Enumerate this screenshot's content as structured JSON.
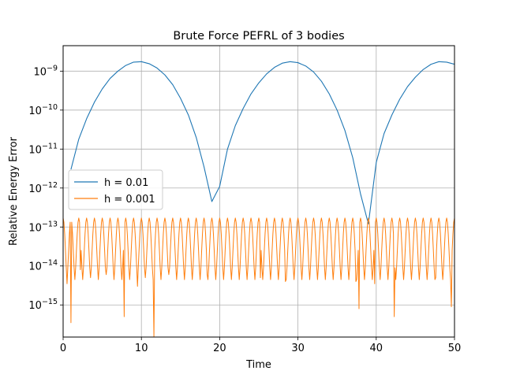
{
  "chart_data": {
    "type": "line",
    "title": "Brute Force PEFRL of 3 bodies",
    "xlabel": "Time",
    "ylabel": "Relative Energy Error",
    "xlim": [
      0,
      50
    ],
    "ylim": [
      1.5e-16,
      4.5e-09
    ],
    "yscale": "log",
    "grid": true,
    "legend_position": "center-left",
    "x_ticks": [
      0,
      10,
      20,
      30,
      40,
      50
    ],
    "x_tick_labels": [
      "0",
      "10",
      "20",
      "30",
      "40",
      "50"
    ],
    "y_ticks": [
      1e-15,
      1e-14,
      1e-13,
      1e-12,
      1e-11,
      1e-10,
      1e-09
    ],
    "y_tick_labels": [
      {
        "base": "10",
        "exp": "−15"
      },
      {
        "base": "10",
        "exp": "−14"
      },
      {
        "base": "10",
        "exp": "−13"
      },
      {
        "base": "10",
        "exp": "−12"
      },
      {
        "base": "10",
        "exp": "−11"
      },
      {
        "base": "10",
        "exp": "−10"
      },
      {
        "base": "10",
        "exp": "−9"
      }
    ],
    "series": [
      {
        "name": "h = 0.01",
        "color": "#1f77b4",
        "points": [
          [
            1,
            3e-12
          ],
          [
            2,
            1.8e-11
          ],
          [
            3,
            6e-11
          ],
          [
            4,
            1.6e-10
          ],
          [
            5,
            3.5e-10
          ],
          [
            6,
            6.5e-10
          ],
          [
            7,
            1e-09
          ],
          [
            8,
            1.4e-09
          ],
          [
            9,
            1.7e-09
          ],
          [
            10,
            1.75e-09
          ],
          [
            11,
            1.55e-09
          ],
          [
            12,
            1.2e-09
          ],
          [
            13,
            8e-10
          ],
          [
            14,
            4.5e-10
          ],
          [
            15,
            2e-10
          ],
          [
            16,
            7.5e-11
          ],
          [
            17,
            2e-11
          ],
          [
            18,
            3.5e-12
          ],
          [
            19,
            4.5e-13
          ],
          [
            20,
            1.1e-12
          ],
          [
            21,
            1e-11
          ],
          [
            22,
            4e-11
          ],
          [
            23,
            1.1e-10
          ],
          [
            24,
            2.6e-10
          ],
          [
            25,
            5e-10
          ],
          [
            26,
            8.5e-10
          ],
          [
            27,
            1.25e-09
          ],
          [
            28,
            1.6e-09
          ],
          [
            29,
            1.75e-09
          ],
          [
            30,
            1.65e-09
          ],
          [
            31,
            1.35e-09
          ],
          [
            32,
            9.5e-10
          ],
          [
            33,
            5.5e-10
          ],
          [
            34,
            2.6e-10
          ],
          [
            35,
            1e-10
          ],
          [
            36,
            3e-11
          ],
          [
            37,
            6e-12
          ],
          [
            38,
            7e-13
          ],
          [
            39,
            1.2e-13
          ],
          [
            40,
            4.5e-12
          ],
          [
            41,
            2.5e-11
          ],
          [
            42,
            7.5e-11
          ],
          [
            43,
            1.9e-10
          ],
          [
            44,
            4e-10
          ],
          [
            45,
            7e-10
          ],
          [
            46,
            1.1e-09
          ],
          [
            47,
            1.5e-09
          ],
          [
            48,
            1.75e-09
          ],
          [
            49,
            1.7e-09
          ],
          [
            50,
            1.5e-09
          ]
        ]
      },
      {
        "name": "h = 0.001",
        "color": "#ff7f0e",
        "x_start": 0,
        "x_step": 0.1,
        "peak_period": 1.0,
        "peak_value": 1.7e-13,
        "dip_points": [
          [
            0.5,
            3.5e-15
          ],
          [
            1.0,
            3.5e-16
          ],
          [
            2.2,
            8e-15
          ],
          [
            3.5,
            5e-15
          ],
          [
            5.5,
            6e-15
          ],
          [
            7.8,
            5e-16
          ],
          [
            9.5,
            3e-15
          ],
          [
            10.5,
            5e-15
          ],
          [
            11.6,
            1.5e-16
          ],
          [
            13.5,
            6e-15
          ],
          [
            18.4,
            6e-15
          ],
          [
            25.2,
            5e-15
          ],
          [
            28.4,
            4e-15
          ],
          [
            37.4,
            4e-15
          ],
          [
            37.8,
            8e-16
          ],
          [
            39.8,
            3.5e-15
          ],
          [
            42.3,
            5e-16
          ],
          [
            47.6,
            5e-15
          ],
          [
            49.6,
            9e-16
          ]
        ]
      }
    ]
  }
}
